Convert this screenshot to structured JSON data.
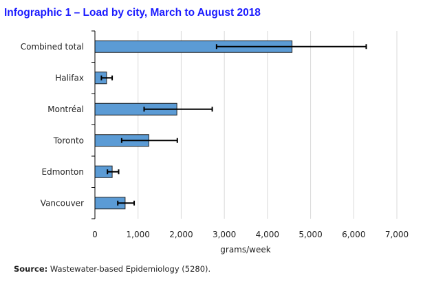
{
  "title": "Infographic 1 –  Load by city, March to August 2018",
  "source": {
    "label": "Source:",
    "text": " Wastewater-based Epidemiology (5280)."
  },
  "chart_data": {
    "type": "bar",
    "orientation": "horizontal",
    "title": "Infographic 1 –  Load by city, March to August 2018",
    "xlabel": "grams/week",
    "ylabel": "",
    "xlim": [
      0,
      7000
    ],
    "xticks": [
      0,
      1000,
      2000,
      3000,
      4000,
      5000,
      6000,
      7000
    ],
    "xtick_labels": [
      "0",
      "1,000",
      "2,000",
      "3,000",
      "4,000",
      "5,000",
      "6,000",
      "7,000"
    ],
    "grid": "vertical",
    "bar_color": "#5b9bd5",
    "categories": [
      "Combined total",
      "Halifax",
      "Montréal",
      "Toronto",
      "Edmonton",
      "Vancouver"
    ],
    "values": [
      4570,
      270,
      1900,
      1250,
      400,
      700
    ],
    "error_low": [
      2820,
      150,
      1140,
      620,
      290,
      530
    ],
    "error_high": [
      6290,
      400,
      2720,
      1910,
      550,
      910
    ]
  }
}
